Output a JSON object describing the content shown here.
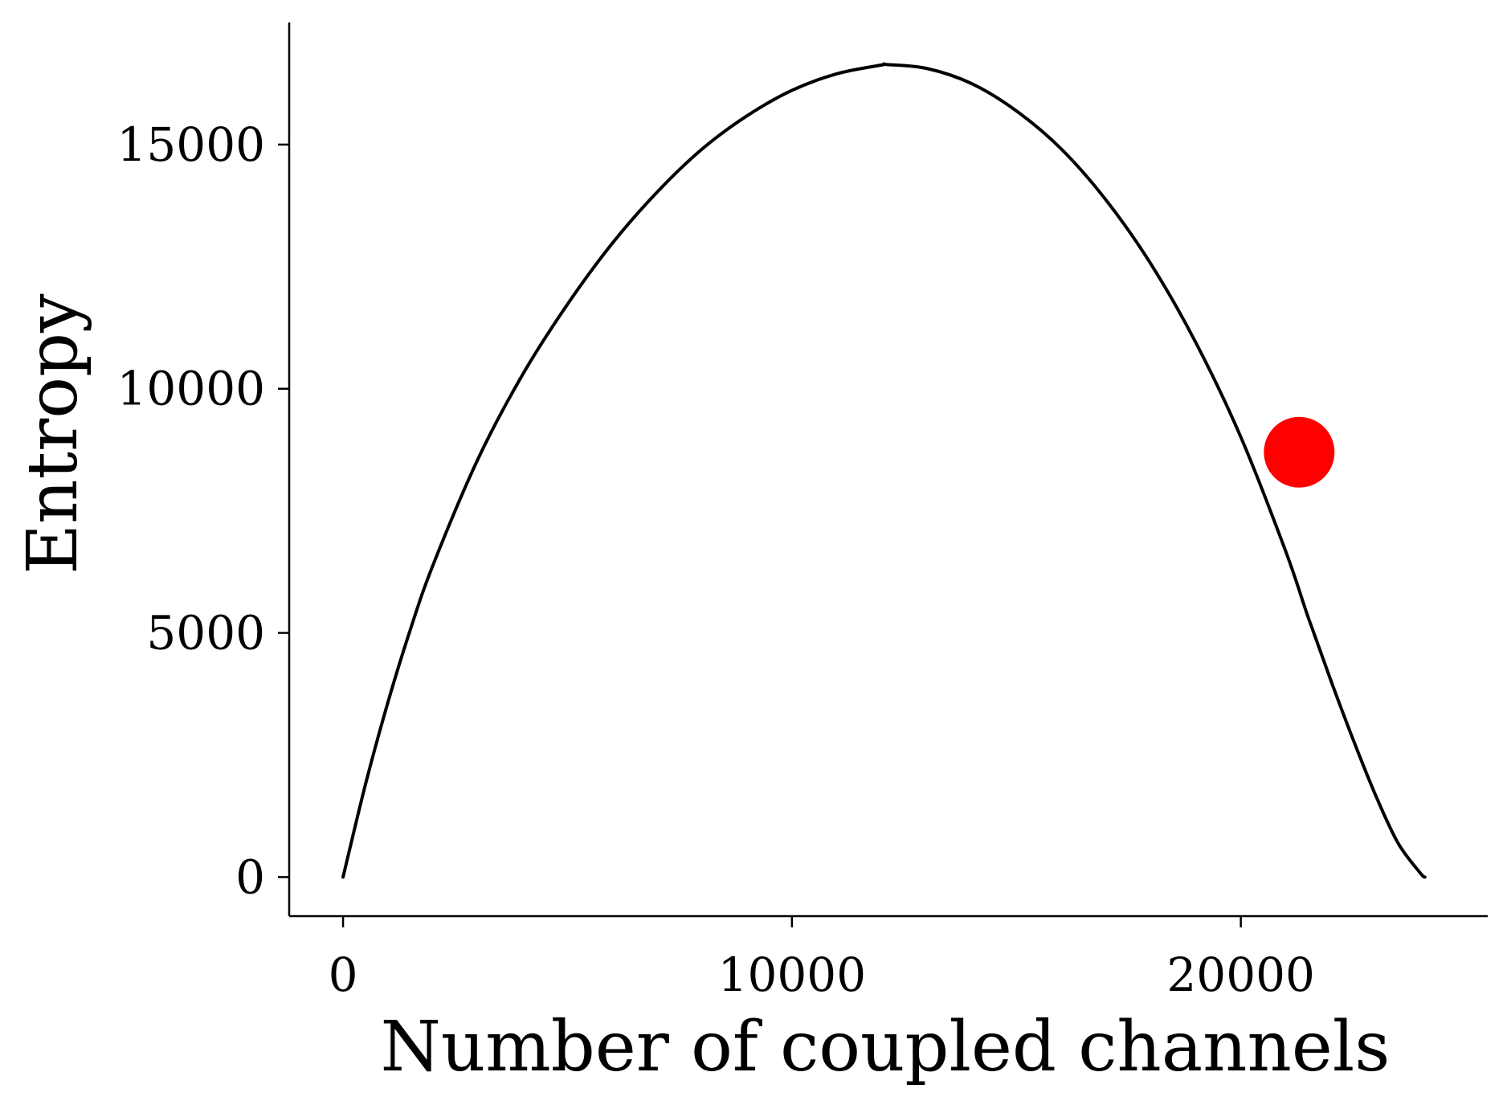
{
  "chart_data": {
    "type": "line",
    "title": "",
    "xlabel": "Number of coupled channels",
    "ylabel": "Entropy",
    "xlim": [
      -1200,
      25500
    ],
    "ylim": [
      -800,
      17500
    ],
    "xticks": [
      0,
      10000,
      20000
    ],
    "yticks": [
      0,
      5000,
      10000,
      15000
    ],
    "xtick_labels": [
      "0",
      "10000",
      "20000"
    ],
    "ytick_labels": [
      "0",
      "5000",
      "10000",
      "15000"
    ],
    "grid": false,
    "legend": "none",
    "spines": [
      "left",
      "bottom"
    ],
    "series": [
      {
        "color": "#000000",
        "x": [
          0,
          500,
          1000,
          1500,
          2000,
          3000,
          4000,
          5000,
          6000,
          7000,
          8000,
          9000,
          10000,
          11000,
          12000,
          12100,
          13000,
          14000,
          15000,
          16000,
          17000,
          18000,
          19000,
          20000,
          21000,
          21500,
          22000,
          22500,
          23000,
          23500,
          24000,
          24100
        ],
        "y": [
          0,
          1900,
          3580,
          5070,
          6380,
          8550,
          10290,
          11730,
          12980,
          14030,
          14910,
          15590,
          16110,
          16450,
          16630,
          16640,
          16560,
          16250,
          15690,
          14910,
          13860,
          12550,
          10940,
          9010,
          6670,
          5320,
          4040,
          2820,
          1680,
          700,
          80,
          0
        ]
      }
    ],
    "highlight_point": {
      "x": 21300,
      "y": 8700,
      "color": "#ff0000"
    }
  }
}
